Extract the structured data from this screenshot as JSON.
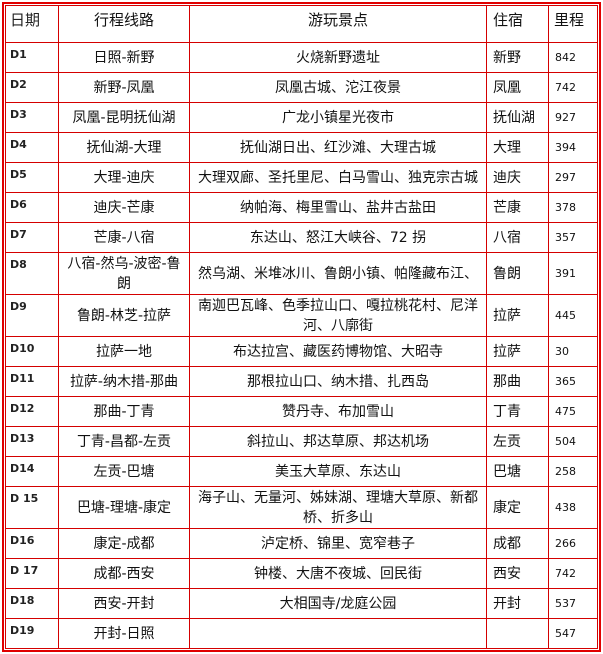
{
  "headers": {
    "day": "日期",
    "route": "行程线路",
    "sights": "游玩景点",
    "stay": "住宿",
    "km": "里程"
  },
  "rows": [
    {
      "day": "D1",
      "route": "日照-新野",
      "sights": "火烧新野遗址",
      "stay": "新野",
      "km": "842"
    },
    {
      "day": "D2",
      "route": "新野-凤凰",
      "sights": "凤凰古城、沱江夜景",
      "stay": "凤凰",
      "km": "742"
    },
    {
      "day": "D3",
      "route": "凤凰-昆明抚仙湖",
      "sights": "广龙小镇星光夜市",
      "stay": "抚仙湖",
      "km": "927"
    },
    {
      "day": "D4",
      "route": "抚仙湖-大理",
      "sights": "抚仙湖日出、红沙滩、大理古城",
      "stay": "大理",
      "km": "394"
    },
    {
      "day": "D5",
      "route": "大理-迪庆",
      "sights": "大理双廊、圣托里尼、白马雪山、独克宗古城",
      "stay": "迪庆",
      "km": "297"
    },
    {
      "day": "D6",
      "route": "迪庆-芒康",
      "sights": "纳帕海、梅里雪山、盐井古盐田",
      "stay": "芒康",
      "km": "378"
    },
    {
      "day": "D7",
      "route": "芒康-八宿",
      "sights": "东达山、怒江大峡谷、72 拐",
      "stay": "八宿",
      "km": "357"
    },
    {
      "day": "D8",
      "route": "八宿-然乌-波密-鲁朗",
      "sights": "然乌湖、米堆冰川、鲁朗小镇、帕隆藏布江、",
      "stay": "鲁朗",
      "km": "391"
    },
    {
      "day": "D9",
      "route": "鲁朗-林芝-拉萨",
      "sights": "南迦巴瓦峰、色季拉山口、嘎拉桃花村、尼洋河、八廓街",
      "stay": "拉萨",
      "km": "445"
    },
    {
      "day": "D10",
      "route": "拉萨一地",
      "sights": "布达拉宫、藏医药博物馆、大昭寺",
      "stay": "拉萨",
      "km": "30"
    },
    {
      "day": "D11",
      "route": "拉萨-纳木措-那曲",
      "sights": "那根拉山口、纳木措、扎西岛",
      "stay": "那曲",
      "km": "365"
    },
    {
      "day": "D12",
      "route": "那曲-丁青",
      "sights": "赞丹寺、布加雪山",
      "stay": "丁青",
      "km": "475"
    },
    {
      "day": "D13",
      "route": "丁青-昌都-左贡",
      "sights": "斜拉山、邦达草原、邦达机场",
      "stay": "左贡",
      "km": "504"
    },
    {
      "day": "D14",
      "route": "左贡-巴塘",
      "sights": "美玉大草原、东达山",
      "stay": "巴塘",
      "km": "258"
    },
    {
      "day": "D 15",
      "route": "巴塘-理塘-康定",
      "sights": "海子山、无量河、姊妹湖、理塘大草原、新都桥、折多山",
      "stay": "康定",
      "km": "438"
    },
    {
      "day": "D16",
      "route": "康定-成都",
      "sights": "泸定桥、锦里、宽窄巷子",
      "stay": "成都",
      "km": "266"
    },
    {
      "day": "D 17",
      "route": "成都-西安",
      "sights": "钟楼、大唐不夜城、回民街",
      "stay": "西安",
      "km": "742"
    },
    {
      "day": "D18",
      "route": "西安-开封",
      "sights": "大相国寺/龙庭公园",
      "stay": "开封",
      "km": "537"
    },
    {
      "day": "D19",
      "route": "开封-日照",
      "sights": "",
      "stay": "",
      "km": "547"
    }
  ],
  "colors": {
    "border": "#d40000",
    "frame": "#e00000"
  }
}
